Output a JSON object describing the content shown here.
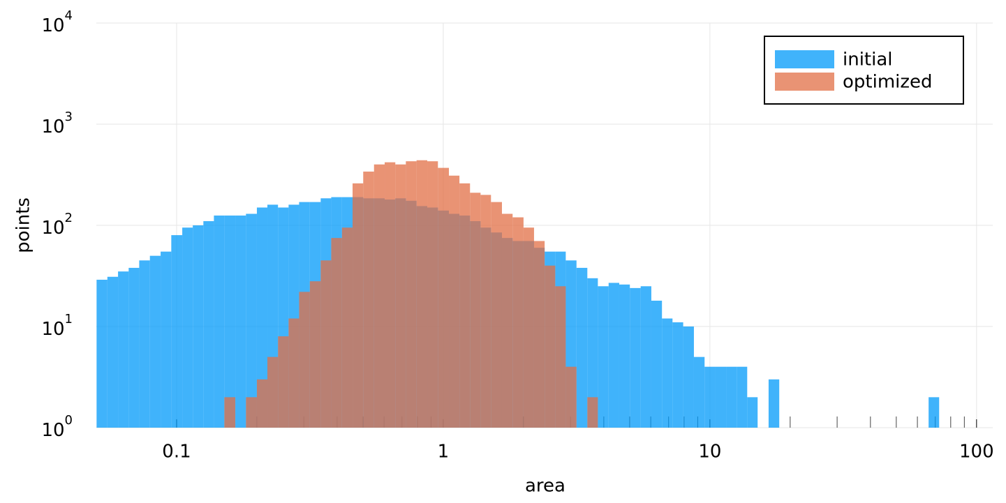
{
  "chart_data": {
    "type": "histogram",
    "xlabel": "area",
    "ylabel": "points",
    "xscale": "log",
    "yscale": "log",
    "xlim": [
      0.05,
      115
    ],
    "ylim": [
      1,
      10000
    ],
    "xticks": [
      0.1,
      1,
      10,
      100
    ],
    "xminorticks": [
      0.2,
      0.3,
      0.4,
      0.5,
      0.6,
      0.7,
      0.8,
      0.9,
      2,
      3,
      4,
      5,
      6,
      7,
      8,
      9,
      20,
      30,
      40,
      50,
      60,
      70,
      80,
      90
    ],
    "yticks": [
      {
        "value": 1,
        "label": "10",
        "exponent": "0"
      },
      {
        "value": 10,
        "label": "10",
        "exponent": "1"
      },
      {
        "value": 100,
        "label": "10",
        "exponent": "2"
      },
      {
        "value": 1000,
        "label": "10",
        "exponent": "3"
      },
      {
        "value": 10000,
        "label": "10",
        "exponent": "4"
      }
    ],
    "grid": true,
    "legend": "top-right",
    "bins": [
      0.0501,
      0.055,
      0.0603,
      0.0661,
      0.0724,
      0.0794,
      0.0871,
      0.0955,
      0.105,
      0.115,
      0.126,
      0.138,
      0.151,
      0.166,
      0.182,
      0.2,
      0.219,
      0.24,
      0.263,
      0.288,
      0.316,
      0.347,
      0.38,
      0.417,
      0.457,
      0.501,
      0.55,
      0.603,
      0.661,
      0.724,
      0.794,
      0.871,
      0.955,
      1.05,
      1.15,
      1.26,
      1.38,
      1.51,
      1.66,
      1.82,
      2.0,
      2.19,
      2.4,
      2.63,
      2.88,
      3.16,
      3.47,
      3.8,
      4.17,
      4.57,
      5.01,
      5.5,
      6.03,
      6.61,
      7.24,
      7.94,
      8.71,
      9.55,
      10.5,
      11.5,
      12.6,
      13.8,
      15.1,
      16.6,
      18.2,
      20.0,
      21.9,
      24.0,
      26.3,
      28.8,
      31.6,
      34.7,
      38.0,
      41.7,
      45.7,
      50.1,
      55.0,
      60.3,
      66.1,
      72.4
    ],
    "series": [
      {
        "name": "initial",
        "color": "#009afa",
        "values": [
          29,
          31,
          35,
          38,
          45,
          50,
          55,
          80,
          95,
          100,
          110,
          125,
          125,
          125,
          130,
          150,
          160,
          150,
          160,
          170,
          170,
          185,
          190,
          190,
          190,
          185,
          185,
          180,
          185,
          175,
          155,
          150,
          140,
          130,
          125,
          110,
          95,
          85,
          75,
          70,
          70,
          60,
          55,
          55,
          45,
          38,
          30,
          25,
          27,
          26,
          24,
          25,
          18,
          12,
          11,
          10,
          5,
          4,
          4,
          4,
          4,
          2,
          0,
          3,
          0,
          0,
          0,
          0,
          0,
          0,
          0,
          0,
          0,
          0,
          0,
          0,
          0,
          0,
          2
        ]
      },
      {
        "name": "optimized",
        "color": "#e26f46",
        "values": [
          0,
          0,
          0,
          0,
          0,
          0,
          0,
          0,
          0,
          0,
          0,
          0,
          2,
          0,
          2,
          3,
          5,
          8,
          12,
          22,
          28,
          45,
          75,
          95,
          260,
          340,
          400,
          420,
          400,
          430,
          440,
          430,
          370,
          310,
          260,
          210,
          200,
          170,
          130,
          120,
          95,
          70,
          40,
          25,
          4,
          0,
          2,
          0,
          0,
          0,
          0,
          0,
          0,
          0,
          0,
          0,
          0,
          0,
          0,
          0,
          0,
          0,
          0,
          0,
          0,
          0,
          0,
          0,
          0,
          0,
          0,
          0,
          0,
          0,
          0,
          0,
          0,
          0,
          0
        ]
      }
    ]
  }
}
